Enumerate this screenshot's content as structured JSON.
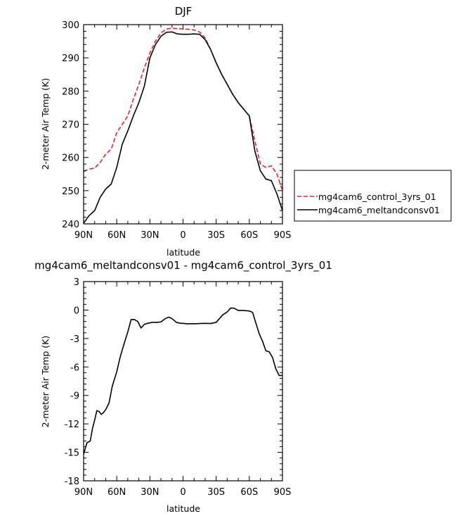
{
  "chart_data": [
    {
      "type": "line",
      "title": "DJF",
      "xlabel": "latitude",
      "ylabel": "2-meter Air Temp (K)",
      "x_ticks": [
        "90N",
        "60N",
        "30N",
        "0",
        "30S",
        "60S",
        "90S"
      ],
      "y_ticks": [
        "240",
        "250",
        "260",
        "270",
        "280",
        "290",
        "300"
      ],
      "xlim": [
        90,
        -90
      ],
      "ylim": [
        240,
        300
      ],
      "legend_position": "right",
      "grid": false,
      "series": [
        {
          "name": "mg4cam6_control_3yrs_01",
          "color": "#e8202a",
          "dash": "dashed",
          "x": [
            90,
            85,
            80,
            75,
            70,
            65,
            60,
            55,
            50,
            45,
            40,
            35,
            30,
            25,
            20,
            15,
            10,
            5,
            0,
            -5,
            -10,
            -15,
            -20,
            -25,
            -30,
            -35,
            -40,
            -45,
            -50,
            -55,
            -60,
            -65,
            -70,
            -75,
            -80,
            -85,
            -90
          ],
          "values": [
            255.8,
            256.5,
            256.8,
            258.5,
            261,
            262.5,
            267.5,
            270,
            272.5,
            277.5,
            282,
            287,
            291.5,
            295,
            297.5,
            298.7,
            298.9,
            298.8,
            298.7,
            298.6,
            298.4,
            297.8,
            296,
            292.5,
            288.5,
            285,
            282,
            279,
            276.5,
            274.5,
            272.5,
            265,
            258,
            257,
            257.5,
            255,
            250
          ]
        },
        {
          "name": "mg4cam6_meltandconsv01",
          "color": "#000000",
          "dash": "solid",
          "x": [
            90,
            85,
            80,
            75,
            70,
            65,
            60,
            55,
            50,
            45,
            40,
            35,
            30,
            25,
            20,
            15,
            10,
            5,
            0,
            -5,
            -10,
            -15,
            -20,
            -25,
            -30,
            -35,
            -40,
            -45,
            -50,
            -55,
            -60,
            -65,
            -70,
            -75,
            -80,
            -85,
            -90
          ],
          "values": [
            240.2,
            242.5,
            244,
            248,
            250.5,
            252,
            257,
            264,
            268,
            272.5,
            276.5,
            281.5,
            290,
            294,
            296.5,
            297.7,
            297.8,
            297.2,
            297.1,
            297.1,
            297.2,
            297.1,
            295.5,
            292.5,
            288.5,
            285,
            282,
            279,
            276.5,
            274.5,
            272.5,
            262,
            256,
            253.5,
            253,
            249,
            244
          ]
        }
      ]
    },
    {
      "type": "line",
      "title": "mg4cam6_meltandconsv01 - mg4cam6_control_3yrs_01",
      "xlabel": "latitude",
      "ylabel": "2-meter Air Temp (K)",
      "x_ticks": [
        "90N",
        "60N",
        "30N",
        "0",
        "30S",
        "60S",
        "90S"
      ],
      "y_ticks": [
        "-18",
        "-15",
        "-12",
        "-9",
        "-6",
        "-3",
        "0",
        "3"
      ],
      "xlim": [
        90,
        -90
      ],
      "ylim": [
        -18,
        3
      ],
      "grid": false,
      "series": [
        {
          "color": "#000000",
          "dash": "solid",
          "x": [
            90,
            87,
            84,
            82,
            80,
            78,
            76,
            74,
            72,
            70,
            67,
            64,
            60,
            57,
            54,
            50,
            47,
            44,
            41,
            38,
            35,
            32,
            28,
            24,
            20,
            16,
            13,
            10,
            6,
            2,
            0,
            -3,
            -7,
            -10,
            -15,
            -20,
            -25,
            -30,
            -33,
            -36,
            -40,
            -43,
            -46,
            -50,
            -55,
            -60,
            -63,
            -66,
            -69,
            -72,
            -75,
            -78,
            -81,
            -84,
            -87,
            -90
          ],
          "values": [
            -15.2,
            -14,
            -13.8,
            -12.5,
            -11.6,
            -10.6,
            -10.7,
            -11,
            -10.8,
            -10.5,
            -9.8,
            -8,
            -6.5,
            -5,
            -3.8,
            -2.3,
            -1,
            -1,
            -1.2,
            -1.9,
            -1.5,
            -1.4,
            -1.3,
            -1.3,
            -1.25,
            -0.9,
            -0.75,
            -0.9,
            -1.3,
            -1.4,
            -1.4,
            -1.45,
            -1.45,
            -1.45,
            -1.42,
            -1.4,
            -1.42,
            -1.3,
            -0.9,
            -0.5,
            -0.2,
            0.2,
            0.2,
            -0.05,
            -0.05,
            -0.1,
            -0.25,
            -1.4,
            -2.5,
            -3.3,
            -4.3,
            -4.4,
            -5,
            -6.2,
            -6.9,
            -6.9
          ]
        }
      ]
    }
  ]
}
